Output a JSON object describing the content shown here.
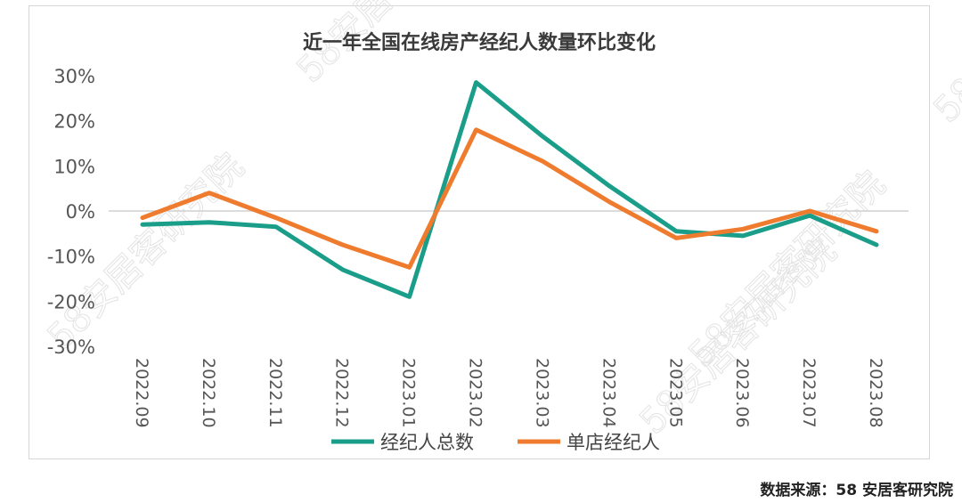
{
  "chart_data": {
    "type": "line",
    "title": "近一年全国在线房产经纪人数量环比变化",
    "categories": [
      "2022.09",
      "2022.10",
      "2022.11",
      "2022.12",
      "2023.01",
      "2023.02",
      "2023.03",
      "2023.04",
      "2023.05",
      "2023.06",
      "2023.07",
      "2023.08"
    ],
    "series": [
      {
        "name": "经纪人总数",
        "color": "#1a9e8a",
        "values": [
          -3,
          -2.5,
          -3.5,
          -13,
          -19,
          28.5,
          16.5,
          5.5,
          -4.5,
          -5.5,
          -1,
          -7.5
        ]
      },
      {
        "name": "单店经纪人",
        "color": "#ef7b2e",
        "values": [
          -1.5,
          4,
          -1.5,
          -7.5,
          -12.5,
          18,
          11,
          2,
          -6,
          -4,
          0,
          -4.5
        ]
      }
    ],
    "yticks": [
      "30%",
      "20%",
      "10%",
      "0%",
      "-10%",
      "-20%",
      "-30%"
    ],
    "ylim": [
      -30,
      30
    ],
    "legend_position": "bottom",
    "grid": false,
    "zero_line": true
  },
  "source_note": "数据来源：58 安居客研究院",
  "watermark_text": "58安居客研究院"
}
